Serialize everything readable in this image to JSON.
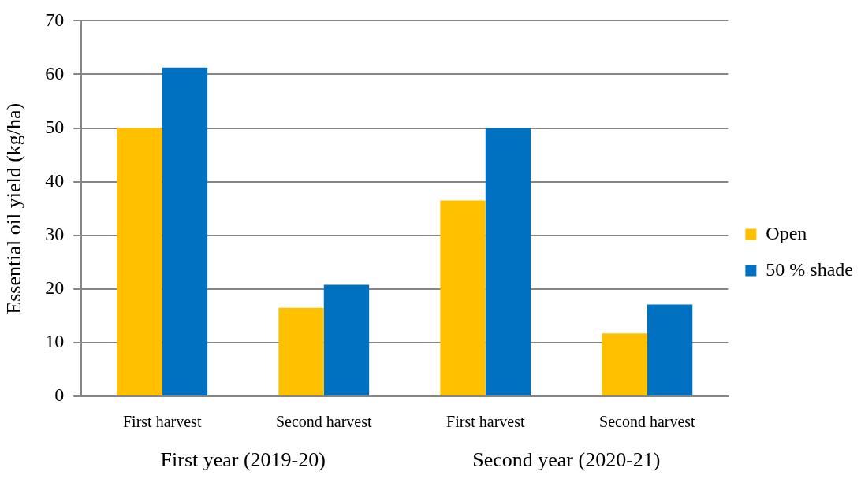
{
  "chart_data": {
    "type": "bar",
    "ylabel": "Essential oil yield (kg/ha)",
    "categories": [
      "First harvest",
      "Second harvest",
      "First harvest",
      "Second harvest"
    ],
    "series": [
      {
        "name": "Open",
        "color": "#ffc000",
        "values": [
          50.0,
          16.5,
          36.5,
          11.7
        ]
      },
      {
        "name": "50 % shade",
        "color": "#0070c0",
        "values": [
          61.3,
          20.8,
          50.0,
          17.1
        ]
      }
    ],
    "ylim": [
      0,
      70
    ],
    "yticks": [
      0,
      10,
      20,
      30,
      40,
      50,
      60,
      70
    ],
    "grid": "y",
    "legend": "right",
    "annotations": [
      "First year (2019-20)",
      "Second year (2020-21)"
    ]
  }
}
